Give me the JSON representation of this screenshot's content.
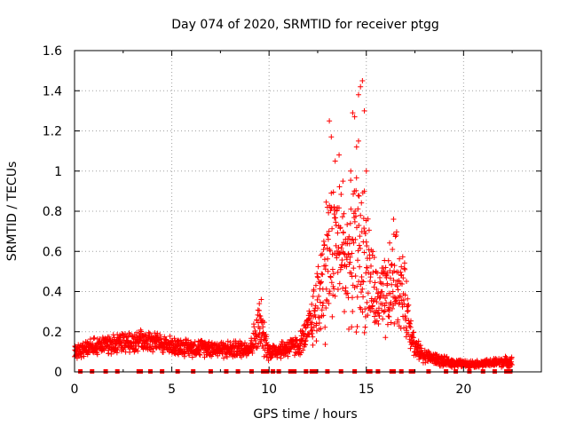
{
  "chart_data": {
    "type": "scatter",
    "title": "Day 074 of 2020, SRMTID for receiver ptgg",
    "xlabel": "GPS time / hours",
    "ylabel": "SRMTID / TECUs",
    "xlim": [
      0,
      24
    ],
    "ylim": [
      0,
      1.6
    ],
    "xticks": [
      0,
      5,
      10,
      15,
      20
    ],
    "yticks": [
      0,
      0.2,
      0.4,
      0.6,
      0.8,
      1,
      1.2,
      1.4,
      1.6
    ],
    "xtick_labels": [
      "0",
      "5",
      "10",
      "15",
      "20"
    ],
    "ytick_labels": [
      "0",
      "0.2",
      "0.4",
      "0.6",
      "0.8",
      "1",
      "1.2",
      "1.4",
      "1.6"
    ],
    "grid": true,
    "marker": "+",
    "color": "#ff0000",
    "series": [
      {
        "name": "SRMTID",
        "profile_x": [
          0,
          1,
          2,
          3,
          4,
          5,
          6,
          7,
          8,
          9,
          9.5,
          10,
          10.5,
          11,
          11.5,
          12,
          12.5,
          13,
          13.5,
          14,
          14.5,
          15,
          15.5,
          16,
          16.5,
          17,
          17.5,
          18,
          19,
          20,
          21,
          22,
          22.5
        ],
        "profile_y": [
          0.1,
          0.13,
          0.14,
          0.15,
          0.15,
          0.13,
          0.12,
          0.12,
          0.11,
          0.12,
          0.22,
          0.1,
          0.11,
          0.12,
          0.13,
          0.2,
          0.35,
          0.55,
          0.65,
          0.55,
          0.6,
          0.55,
          0.35,
          0.35,
          0.48,
          0.35,
          0.12,
          0.08,
          0.05,
          0.04,
          0.04,
          0.05,
          0.05
        ],
        "profile_spread": [
          0.05,
          0.05,
          0.06,
          0.06,
          0.06,
          0.05,
          0.05,
          0.05,
          0.05,
          0.05,
          0.15,
          0.05,
          0.05,
          0.06,
          0.06,
          0.1,
          0.25,
          0.45,
          0.4,
          0.35,
          0.45,
          0.4,
          0.2,
          0.25,
          0.3,
          0.2,
          0.06,
          0.04,
          0.03,
          0.02,
          0.02,
          0.03,
          0.03
        ],
        "highlights": [
          {
            "x": 13.1,
            "y": 1.25
          },
          {
            "x": 13.2,
            "y": 1.17
          },
          {
            "x": 14.7,
            "y": 1.42
          },
          {
            "x": 14.8,
            "y": 1.45
          },
          {
            "x": 14.9,
            "y": 1.3
          },
          {
            "x": 14.6,
            "y": 1.38
          },
          {
            "x": 14.3,
            "y": 1.29
          },
          {
            "x": 14.4,
            "y": 1.27
          },
          {
            "x": 13.4,
            "y": 1.05
          },
          {
            "x": 13.6,
            "y": 1.08
          },
          {
            "x": 14.2,
            "y": 1.0
          },
          {
            "x": 14.5,
            "y": 1.12
          },
          {
            "x": 14.6,
            "y": 1.15
          },
          {
            "x": 13.8,
            "y": 0.95
          },
          {
            "x": 16.4,
            "y": 0.76
          },
          {
            "x": 9.6,
            "y": 0.36
          },
          {
            "x": 9.5,
            "y": 0.34
          },
          {
            "x": 14.9,
            "y": 0.9
          },
          {
            "x": 13.0,
            "y": 0.82
          },
          {
            "x": 15.0,
            "y": 1.0
          }
        ],
        "zero_markers_x": [
          0.3,
          0.9,
          1.6,
          2.2,
          3.3,
          3.4,
          3.9,
          4.5,
          5.3,
          6.1,
          7.0,
          7.8,
          8.4,
          9.1,
          9.7,
          9.9,
          10.2,
          10.5,
          11.1,
          11.3,
          11.9,
          12.2,
          12.4,
          13.0,
          13.7,
          14.4,
          15.1,
          15.2,
          15.6,
          16.3,
          16.4,
          16.8,
          17.3,
          17.4,
          18.2,
          19.1,
          19.6,
          20.3,
          21.0,
          21.6,
          22.2,
          22.4
        ]
      }
    ]
  }
}
